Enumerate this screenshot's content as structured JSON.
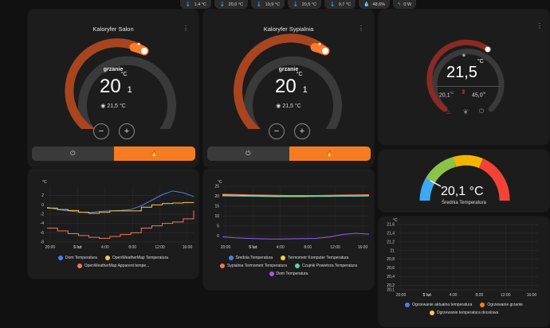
{
  "chips": [
    {
      "icon": "thermometer-icon",
      "value": "1,4 °C"
    },
    {
      "icon": "thermometer-icon",
      "value": "20,0 °C"
    },
    {
      "icon": "thermometer-icon",
      "value": "19,9 °C"
    },
    {
      "icon": "thermometer-icon",
      "value": "20,5 °C"
    },
    {
      "icon": "thermometer-icon",
      "value": "9,7 °C"
    },
    {
      "icon": "water-drop-icon",
      "value": "48,6%"
    },
    {
      "icon": "lightning-icon",
      "value": "0 W"
    }
  ],
  "salon": {
    "title": "Kaloryfer Salon",
    "state": "grzanie",
    "target_int": "20",
    "target_dec": "1",
    "unit": "°C",
    "current": "21,5 °C",
    "minus": "−",
    "plus": "+",
    "power_icon": "⏻",
    "flame_icon": "🔥"
  },
  "sypialnia": {
    "title": "Kaloryfer Sypialnia",
    "state": "grzanie",
    "target_int": "20",
    "target_dec": "1",
    "unit": "°C",
    "current": "21,5 °C",
    "minus": "−",
    "plus": "+",
    "power_icon": "⏻",
    "flame_icon": "🔥"
  },
  "thermostat3": {
    "current_int": "21,5",
    "unit": "°C",
    "target": "20,1",
    "target_unit": "°C",
    "humidity": "45,0",
    "humidity_unit": "%",
    "mode_icons": [
      "flame-icon",
      "leaf-icon",
      "power-icon"
    ]
  },
  "avg_gauge": {
    "value": "20,1 °C",
    "label": "Średnia Temperatura",
    "colors": [
      "#3ea8f3",
      "#8bc34a",
      "#f5b400",
      "#f44336"
    ],
    "level": 0.2
  },
  "chart_salon": {
    "unit": "°C",
    "legend": [
      {
        "name": "Dom Temperatura",
        "color": "#4a7ff0"
      },
      {
        "name": "OpenWeatherMap Temperatura",
        "color": "#f5c94b"
      },
      {
        "name": "OpenWeatherMap Apparent tempe...",
        "color": "#f0775a"
      }
    ]
  },
  "chart_sypialnia": {
    "unit": "°C",
    "legend": [
      {
        "name": "Średnia Temperatura",
        "color": "#4a7ff0"
      },
      {
        "name": "Termometr Komputer Temperatura",
        "color": "#f5c94b"
      },
      {
        "name": "Sypialnia Termometr Temperatura",
        "color": "#f0775a"
      },
      {
        "name": "Czujnik Powietrza Temperatura",
        "color": "#5fcfae"
      },
      {
        "name": "Dom Temperatura",
        "color": "#9b5cf0"
      }
    ]
  },
  "chart_heating": {
    "unit": "°C",
    "legend": [
      {
        "name": "Ogrzewanie aktualna temperatura",
        "color": "#4a7ff0"
      },
      {
        "name": "Ogrzewanie grzanie",
        "color": "#f57c22"
      },
      {
        "name": "Ogrzewanie temperatura docelowa",
        "color": "#f5c94b"
      }
    ]
  },
  "chart_data": [
    {
      "type": "line",
      "x_ticks": [
        "20:00",
        "5 lut",
        "4:00",
        "8:00",
        "12:00",
        "16:00"
      ],
      "y_ticks": [
        2,
        0,
        -2,
        -4,
        -6,
        -8
      ],
      "ylim": [
        -8,
        4
      ],
      "series": [
        {
          "name": "Dom Temperatura",
          "color": "#4a7ff0",
          "values": [
            -0.5,
            -1.0,
            -1.3,
            -1.5,
            -1.7,
            -1.4,
            -1.3,
            -1.2,
            -1.0,
            -0.2,
            1.0,
            2.2,
            3.0,
            2.6,
            1.8
          ]
        },
        {
          "name": "OpenWeatherMap Temperatura",
          "color": "#f5c94b",
          "values": [
            -0.7,
            -1.0,
            -1.2,
            -1.6,
            -1.8,
            -1.6,
            -1.3,
            -1.3,
            -1.3,
            -0.5,
            0.0,
            0.3,
            0.4,
            0.5,
            0.6
          ]
        },
        {
          "name": "OpenWeatherMap Apparent tempe...",
          "color": "#f0775a",
          "values": [
            -5.0,
            -5.6,
            -6.2,
            -6.6,
            -7.0,
            -7.2,
            -6.8,
            -6.4,
            -6.0,
            -5.0,
            -4.5,
            -4.0,
            -3.7,
            -3.0,
            -1.2
          ]
        }
      ]
    },
    {
      "type": "line",
      "x_ticks": [
        "20:00",
        "5 lut",
        "4:00",
        "8:00",
        "12:00",
        "16:00"
      ],
      "y_ticks": [
        25,
        20,
        15,
        10,
        5,
        0
      ],
      "ylim": [
        -3,
        25
      ],
      "series": [
        {
          "name": "Średnia Temperatura",
          "color": "#4a7ff0",
          "values": [
            20.8,
            20.6,
            20.4,
            20.3,
            20.2,
            20.2,
            20.1,
            20.1,
            20.2,
            20.3,
            20.3,
            20.4
          ]
        },
        {
          "name": "Termometr Komputer Temperatura",
          "color": "#f5c94b",
          "values": [
            20.6,
            20.5,
            20.3,
            20.2,
            20.1,
            20.0,
            20.0,
            20.0,
            20.1,
            20.2,
            20.2,
            20.3
          ]
        },
        {
          "name": "Sypialnia Termometr Temperatura",
          "color": "#f0775a",
          "values": [
            21.0,
            20.9,
            20.7,
            20.6,
            20.5,
            20.4,
            20.4,
            20.4,
            20.5,
            20.6,
            20.7,
            20.8
          ]
        },
        {
          "name": "Czujnik Powietrza Temperatura",
          "color": "#5fcfae",
          "values": [
            20.2,
            20.1,
            20.0,
            19.9,
            19.8,
            19.8,
            19.8,
            19.9,
            19.9,
            20.0,
            20.0,
            20.1
          ]
        },
        {
          "name": "Dom Temperatura",
          "color": "#9b5cf0",
          "values": [
            -0.4,
            -0.9,
            -1.2,
            -1.4,
            -1.5,
            -1.4,
            -1.3,
            -1.2,
            -0.5,
            0.8,
            1.4,
            1.0
          ]
        }
      ]
    },
    {
      "type": "line",
      "x_ticks": [
        "20:00",
        "5 lut",
        "4:00",
        "8:00",
        "12:00",
        "16:00"
      ],
      "y_ticks": [
        21.6,
        21.4,
        21.2,
        21,
        20.8,
        20.6,
        20.4,
        20.2,
        20.1
      ],
      "ylim": [
        20.1,
        21.6
      ],
      "series": []
    }
  ]
}
